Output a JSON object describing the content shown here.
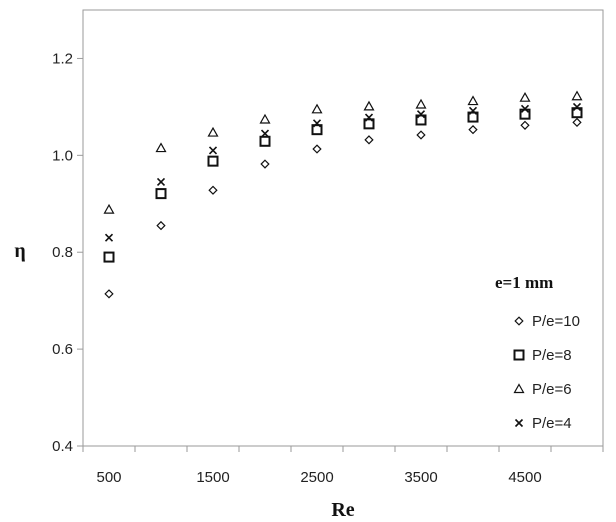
{
  "chart_data": {
    "type": "scatter",
    "xlabel": "Re",
    "ylabel": "η",
    "xlim": [
      250,
      5250
    ],
    "ylim": [
      0.4,
      1.3
    ],
    "xticks": [
      500,
      1500,
      2500,
      3500,
      4500
    ],
    "yticks": [
      0.4,
      0.6,
      0.8,
      1.0,
      1.2
    ],
    "ytick_labels": [
      "0.4",
      "0.6",
      "0.8",
      "1.0",
      "1.2"
    ],
    "grid": false,
    "legend_title": "e=1 mm",
    "legend_position": "bottom-right",
    "x": [
      500,
      1000,
      1500,
      2000,
      2500,
      3000,
      3500,
      4000,
      4500,
      5000
    ],
    "series": [
      {
        "name": "P/e=10",
        "marker": "diamond",
        "values": [
          0.714,
          0.855,
          0.928,
          0.982,
          1.013,
          1.032,
          1.042,
          1.053,
          1.062,
          1.068
        ]
      },
      {
        "name": "P/e=8",
        "marker": "square",
        "values": [
          0.79,
          0.921,
          0.988,
          1.029,
          1.053,
          1.065,
          1.073,
          1.079,
          1.085,
          1.088
        ]
      },
      {
        "name": "P/e=6",
        "marker": "triangle",
        "values": [
          0.888,
          1.015,
          1.047,
          1.074,
          1.095,
          1.101,
          1.105,
          1.112,
          1.119,
          1.122
        ]
      },
      {
        "name": "P/e=4",
        "marker": "cross",
        "values": [
          0.83,
          0.945,
          1.01,
          1.045,
          1.066,
          1.078,
          1.085,
          1.092,
          1.096,
          1.1
        ]
      }
    ]
  }
}
